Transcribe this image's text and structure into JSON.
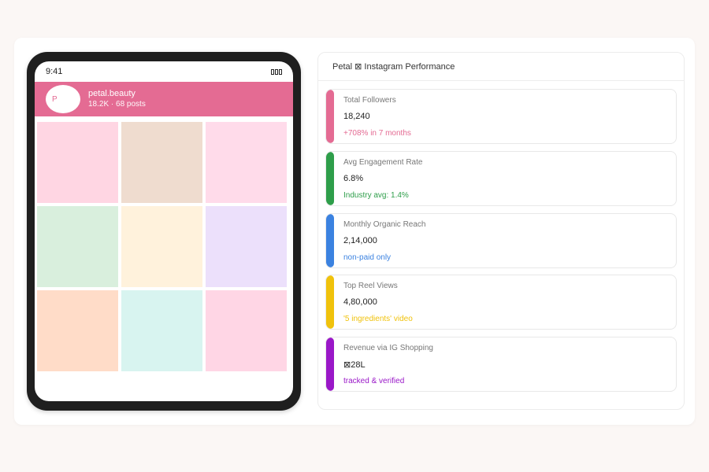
{
  "phone": {
    "time": "9:41",
    "profile": {
      "avatar_letter": "P",
      "name": "petal.beauty",
      "meta": "18.2K · 68 posts",
      "accent_color": "#e46b93"
    },
    "tiles": [
      {
        "color": "#ffd6e3"
      },
      {
        "color": "#efdccf"
      },
      {
        "color": "#ffdbea"
      },
      {
        "color": "#d9efdd"
      },
      {
        "color": "#fff2dc"
      },
      {
        "color": "#ece0fb"
      },
      {
        "color": "#ffdcc8"
      },
      {
        "color": "#d8f4f0"
      },
      {
        "color": "#ffd6e5"
      }
    ]
  },
  "panel": {
    "title": "Petal ⊠ Instagram Performance",
    "metrics": [
      {
        "label": "Total Followers",
        "value": "18,240",
        "note": "+708% in 7 months",
        "color": "#e46b93"
      },
      {
        "label": "Avg Engagement Rate",
        "value": "6.8%",
        "note": "Industry avg: 1.4%",
        "color": "#2e9e4a"
      },
      {
        "label": "Monthly Organic Reach",
        "value": "2,14,000",
        "note": "non-paid only",
        "color": "#3b82e0"
      },
      {
        "label": "Top Reel Views",
        "value": "4,80,000",
        "note": "'5 ingredients' video",
        "color": "#f0c20c"
      },
      {
        "label": "Revenue via IG Shopping",
        "value": "⊠28L",
        "note": "tracked & verified",
        "color": "#9a18c8"
      }
    ]
  }
}
